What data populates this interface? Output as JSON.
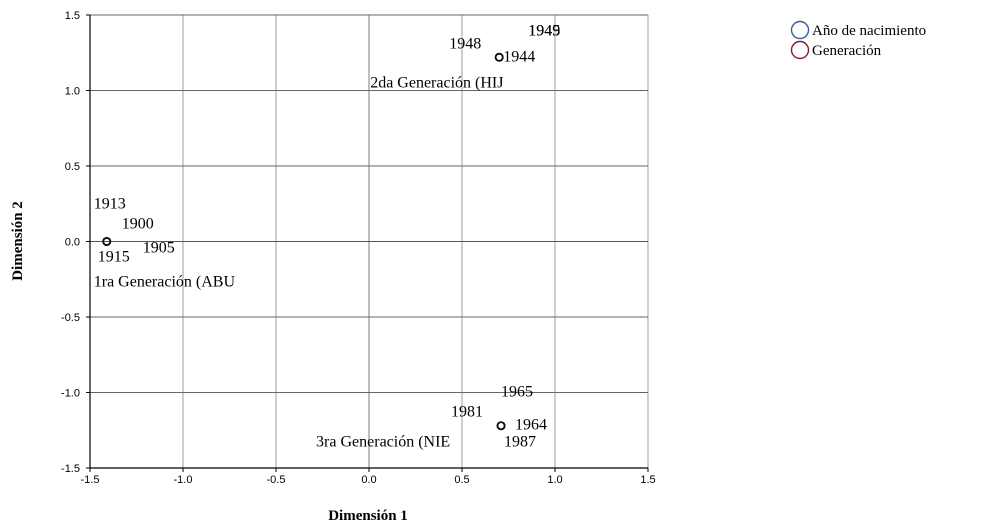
{
  "chart_data": {
    "type": "scatter",
    "xlabel": "Dimensión 1",
    "ylabel": "Dimensión 2",
    "xlim": [
      -1.5,
      1.5
    ],
    "ylim": [
      -1.5,
      1.5
    ],
    "xticks": [
      "-1.5",
      "-1.0",
      "-0.5",
      "0.0",
      "0.5",
      "1.0",
      "1.5"
    ],
    "yticks": [
      "1.5",
      "1.0",
      "0.5",
      "0.0",
      "-0.5",
      "-1.0",
      "-1.5"
    ],
    "grid": true,
    "legend_position": "top-right",
    "series": [
      {
        "name": "Año de nacimiento",
        "color": "#3A5F96",
        "points": [
          {
            "label": "1913",
            "x": -1.41,
            "y": 0.0
          },
          {
            "label": "1900",
            "x": -1.41,
            "y": 0.0
          },
          {
            "label": "1915",
            "x": -1.41,
            "y": 0.0
          },
          {
            "label": "1905",
            "x": -1.41,
            "y": 0.0
          },
          {
            "label": "1948",
            "x": 0.7,
            "y": 1.22
          },
          {
            "label": "1945",
            "x": 0.7,
            "y": 1.22
          },
          {
            "label": "1949",
            "x": 0.7,
            "y": 1.22
          },
          {
            "label": "1944",
            "x": 0.7,
            "y": 1.22
          },
          {
            "label": "1965",
            "x": 0.71,
            "y": -1.22
          },
          {
            "label": "1981",
            "x": 0.71,
            "y": -1.22
          },
          {
            "label": "1964",
            "x": 0.71,
            "y": -1.22
          },
          {
            "label": "1987",
            "x": 0.71,
            "y": -1.22
          }
        ]
      },
      {
        "name": "Generación",
        "color": "#7A1F2B",
        "points": [
          {
            "label": "1ra Generación (ABU",
            "x": -1.41,
            "y": 0.0
          },
          {
            "label": "2da Generación (HIJ",
            "x": 0.7,
            "y": 1.22
          },
          {
            "label": "3ra Generación (NIE",
            "x": 0.71,
            "y": -1.22
          }
        ]
      }
    ]
  }
}
